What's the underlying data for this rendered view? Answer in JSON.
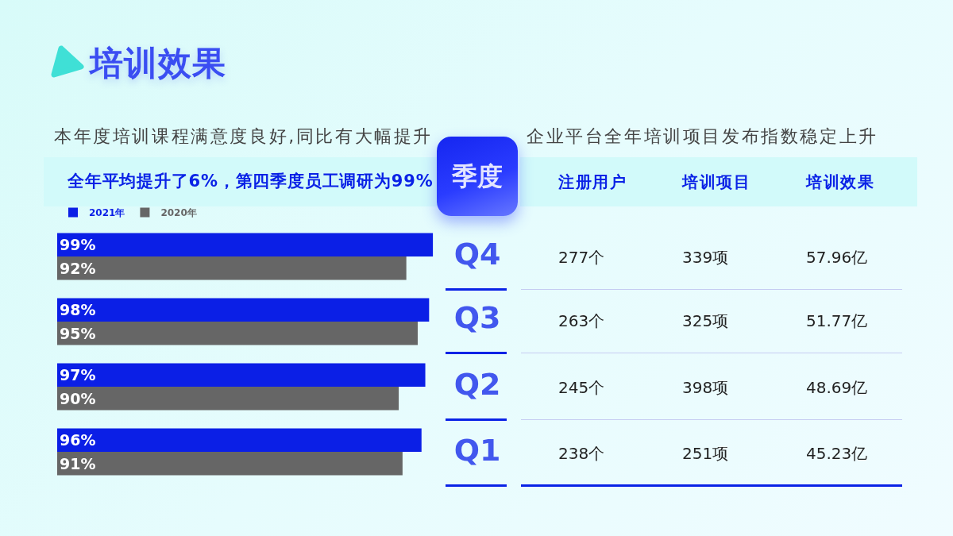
{
  "chart_data": [
    {
      "type": "bar",
      "orientation": "horizontal",
      "title": "培训效果",
      "subtitle": "本年度培训课程满意度良好,同比有大幅提升",
      "annotations": [
        "全年平均提升了6%，第四季度员工调研为99%"
      ],
      "categories": [
        null,
        null,
        null,
        null
      ],
      "series": [
        {
          "name": "2021年",
          "color": "#0b1fe6",
          "values": [
            99,
            98,
            97,
            96
          ],
          "value_labels": [
            "99%",
            "98%",
            "97%",
            "96%"
          ]
        },
        {
          "name": "2020年",
          "color": "#666666",
          "values": [
            92,
            95,
            90,
            91
          ],
          "value_labels": [
            "92%",
            "95%",
            "90%",
            "91%"
          ]
        }
      ],
      "legend": "top left"
    },
    {
      "type": "other",
      "title": "企业平台全年培训项目发布指数稳定上升",
      "annotations": [
        "季度",
        "注册用户",
        "培训项目",
        "培训效果",
        "Q4",
        "277个",
        "339项",
        "57.96亿",
        "Q3",
        "263个",
        "325项",
        "51.77亿",
        "Q2",
        "245个",
        "398项",
        "48.69亿",
        "Q1",
        "238个",
        "251项",
        "45.23亿"
      ]
    }
  ]
}
